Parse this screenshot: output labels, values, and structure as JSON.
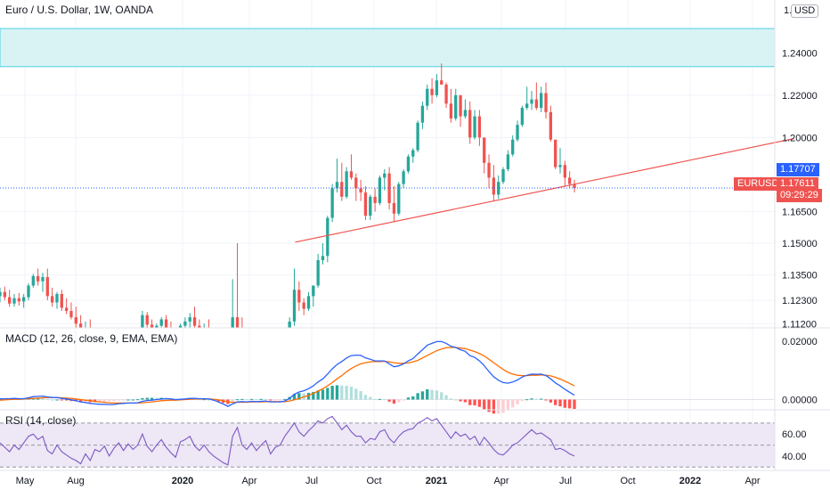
{
  "header": {
    "title": "Euro / U.S. Dollar, 1W, OANDA",
    "currency": "USD",
    "partial_top_tick": "1."
  },
  "macd_label": "MACD (12, 26, close, 9, EMA, EMA)",
  "rsi_label": "RSI (14, close)",
  "price_tags": {
    "symbol": "EURUSD",
    "last_price": "1.17611",
    "countdown": "09:29:29",
    "line_price": "1.17707",
    "symbol_color": "#ef5350",
    "line_color": "#2962ff"
  },
  "colors": {
    "up": "#26a69a",
    "down": "#ef5350",
    "trendline": "#ef5350",
    "zone_fill": "#d9f3f5",
    "zone_border": "#4dd0e1",
    "macd_line": "#2962ff",
    "signal_line": "#ff6d00",
    "rsi_line": "#7e57c2",
    "rsi_band": "#ede7f6"
  },
  "chart_data": [
    {
      "type": "candlestick",
      "title": "Euro / U.S. Dollar, 1W, OANDA",
      "x_ticks": [
        "May",
        "Aug",
        "2020",
        "Apr",
        "Jul",
        "Oct",
        "2021",
        "Apr",
        "Jul",
        "Oct",
        "2022",
        "Apr"
      ],
      "y_ticks": [
        "1.24000",
        "1.22000",
        "1.20000",
        "1.16500",
        "1.15000",
        "1.13500",
        "1.12300",
        "1.11200"
      ],
      "ylim": [
        1.11,
        1.265
      ],
      "resistance_zone": [
        1.2335,
        1.2515
      ],
      "trendline": [
        {
          "x": "2020-06-01",
          "y": 1.1505
        },
        {
          "x": "2022-06-01",
          "y": 1.1995
        }
      ],
      "candles_ohlc": [
        [
          1.125,
          1.129,
          1.122,
          1.127
        ],
        [
          1.127,
          1.1295,
          1.123,
          1.1245
        ],
        [
          1.1245,
          1.128,
          1.12,
          1.1215
        ],
        [
          1.1215,
          1.126,
          1.12,
          1.124
        ],
        [
          1.124,
          1.1265,
          1.1205,
          1.1225
        ],
        [
          1.1225,
          1.126,
          1.1195,
          1.1245
        ],
        [
          1.1245,
          1.131,
          1.123,
          1.13
        ],
        [
          1.13,
          1.1355,
          1.129,
          1.1345
        ],
        [
          1.1345,
          1.138,
          1.13,
          1.132
        ],
        [
          1.132,
          1.136,
          1.127,
          1.134
        ],
        [
          1.134,
          1.138,
          1.123,
          1.125
        ],
        [
          1.125,
          1.129,
          1.12,
          1.122
        ],
        [
          1.122,
          1.127,
          1.119,
          1.126
        ],
        [
          1.126,
          1.128,
          1.118,
          1.1195
        ],
        [
          1.1195,
          1.124,
          1.1165,
          1.118
        ],
        [
          1.118,
          1.122,
          1.114,
          1.115
        ],
        [
          1.115,
          1.12,
          1.11,
          1.112
        ],
        [
          1.112,
          1.116,
          1.106,
          1.108
        ],
        [
          1.108,
          1.113,
          1.103,
          1.11
        ],
        [
          1.11,
          1.114,
          1.1,
          1.102
        ],
        [
          1.102,
          1.108,
          1.095,
          1.105
        ],
        [
          1.105,
          1.109,
          1.101,
          1.103
        ],
        [
          1.103,
          1.108,
          1.098,
          1.106
        ],
        [
          1.106,
          1.11,
          1.099,
          1.1
        ],
        [
          1.1,
          1.106,
          1.093,
          1.104
        ],
        [
          1.104,
          1.11,
          1.101,
          1.108
        ],
        [
          1.108,
          1.11,
          1.1,
          1.102
        ],
        [
          1.102,
          1.107,
          1.099,
          1.105
        ],
        [
          1.105,
          1.109,
          1.1,
          1.102
        ],
        [
          1.102,
          1.106,
          1.099,
          1.104
        ],
        [
          1.104,
          1.118,
          1.103,
          1.116
        ],
        [
          1.116,
          1.1175,
          1.11,
          1.1115
        ],
        [
          1.1115,
          1.114,
          1.106,
          1.108
        ],
        [
          1.108,
          1.112,
          1.104,
          1.111
        ],
        [
          1.111,
          1.115,
          1.11,
          1.114
        ],
        [
          1.114,
          1.116,
          1.109,
          1.11
        ],
        [
          1.11,
          1.113,
          1.104,
          1.106
        ],
        [
          1.106,
          1.109,
          1.102,
          1.103
        ],
        [
          1.103,
          1.112,
          1.102,
          1.111
        ],
        [
          1.111,
          1.115,
          1.108,
          1.113
        ],
        [
          1.113,
          1.117,
          1.11,
          1.115
        ],
        [
          1.115,
          1.12,
          1.109,
          1.111
        ],
        [
          1.111,
          1.114,
          1.106,
          1.108
        ],
        [
          1.108,
          1.112,
          1.105,
          1.11
        ],
        [
          1.11,
          1.114,
          1.104,
          1.106
        ],
        [
          1.106,
          1.109,
          1.098,
          1.1
        ],
        [
          1.1,
          1.105,
          1.09,
          1.095
        ],
        [
          1.095,
          1.098,
          1.085,
          1.088
        ],
        [
          1.088,
          1.09,
          1.078,
          1.08
        ],
        [
          1.08,
          1.133,
          1.078,
          1.115
        ],
        [
          1.115,
          1.15,
          1.11,
          1.105
        ],
        [
          1.105,
          1.115,
          1.07,
          1.095
        ],
        [
          1.095,
          1.1,
          1.085,
          1.088
        ],
        [
          1.088,
          1.099,
          1.084,
          1.095
        ],
        [
          1.095,
          1.099,
          1.086,
          1.087
        ],
        [
          1.087,
          1.095,
          1.08,
          1.09
        ],
        [
          1.09,
          1.098,
          1.086,
          1.092
        ],
        [
          1.092,
          1.097,
          1.078,
          1.081
        ],
        [
          1.081,
          1.087,
          1.078,
          1.085
        ],
        [
          1.085,
          1.09,
          1.076,
          1.087
        ],
        [
          1.087,
          1.098,
          1.085,
          1.096
        ],
        [
          1.096,
          1.115,
          1.095,
          1.113
        ],
        [
          1.113,
          1.138,
          1.111,
          1.128
        ],
        [
          1.128,
          1.132,
          1.118,
          1.122
        ],
        [
          1.122,
          1.124,
          1.116,
          1.119
        ],
        [
          1.119,
          1.127,
          1.118,
          1.125
        ],
        [
          1.125,
          1.13,
          1.12,
          1.13
        ],
        [
          1.13,
          1.145,
          1.129,
          1.142
        ],
        [
          1.142,
          1.15,
          1.14,
          1.144
        ],
        [
          1.144,
          1.163,
          1.141,
          1.162
        ],
        [
          1.162,
          1.178,
          1.16,
          1.176
        ],
        [
          1.176,
          1.19,
          1.174,
          1.179
        ],
        [
          1.179,
          1.188,
          1.17,
          1.172
        ],
        [
          1.172,
          1.186,
          1.171,
          1.184
        ],
        [
          1.184,
          1.192,
          1.18,
          1.181
        ],
        [
          1.181,
          1.183,
          1.17,
          1.176
        ],
        [
          1.176,
          1.18,
          1.17,
          1.174
        ],
        [
          1.174,
          1.177,
          1.161,
          1.163
        ],
        [
          1.163,
          1.173,
          1.161,
          1.172
        ],
        [
          1.172,
          1.176,
          1.165,
          1.169
        ],
        [
          1.169,
          1.182,
          1.168,
          1.181
        ],
        [
          1.181,
          1.185,
          1.175,
          1.183
        ],
        [
          1.183,
          1.186,
          1.166,
          1.169
        ],
        [
          1.169,
          1.177,
          1.16,
          1.164
        ],
        [
          1.164,
          1.179,
          1.163,
          1.178
        ],
        [
          1.178,
          1.185,
          1.176,
          1.184
        ],
        [
          1.184,
          1.192,
          1.183,
          1.191
        ],
        [
          1.191,
          1.195,
          1.188,
          1.194
        ],
        [
          1.194,
          1.208,
          1.193,
          1.207
        ],
        [
          1.207,
          1.217,
          1.204,
          1.215
        ],
        [
          1.215,
          1.225,
          1.213,
          1.223
        ],
        [
          1.223,
          1.228,
          1.216,
          1.22
        ],
        [
          1.22,
          1.23,
          1.219,
          1.227
        ],
        [
          1.227,
          1.235,
          1.225,
          1.225
        ],
        [
          1.225,
          1.226,
          1.214,
          1.216
        ],
        [
          1.216,
          1.223,
          1.207,
          1.209
        ],
        [
          1.209,
          1.223,
          1.208,
          1.22
        ],
        [
          1.22,
          1.22,
          1.205,
          1.21
        ],
        [
          1.21,
          1.218,
          1.209,
          1.213
        ],
        [
          1.213,
          1.217,
          1.197,
          1.2
        ],
        [
          1.2,
          1.213,
          1.199,
          1.21
        ],
        [
          1.21,
          1.213,
          1.196,
          1.2
        ],
        [
          1.2,
          1.199,
          1.183,
          1.188
        ],
        [
          1.188,
          1.192,
          1.176,
          1.181
        ],
        [
          1.181,
          1.187,
          1.17,
          1.173
        ],
        [
          1.173,
          1.182,
          1.171,
          1.179
        ],
        [
          1.179,
          1.186,
          1.178,
          1.185
        ],
        [
          1.185,
          1.194,
          1.184,
          1.192
        ],
        [
          1.192,
          1.201,
          1.191,
          1.199
        ],
        [
          1.199,
          1.208,
          1.198,
          1.206
        ],
        [
          1.206,
          1.215,
          1.205,
          1.214
        ],
        [
          1.214,
          1.224,
          1.213,
          1.216
        ],
        [
          1.216,
          1.222,
          1.213,
          1.218
        ],
        [
          1.218,
          1.226,
          1.213,
          1.214
        ],
        [
          1.214,
          1.224,
          1.212,
          1.221
        ],
        [
          1.221,
          1.226,
          1.209,
          1.212
        ],
        [
          1.212,
          1.215,
          1.198,
          1.199
        ],
        [
          1.199,
          1.198,
          1.185,
          1.186
        ],
        [
          1.186,
          1.195,
          1.183,
          1.187
        ],
        [
          1.187,
          1.189,
          1.177,
          1.181
        ],
        [
          1.181,
          1.184,
          1.176,
          1.178
        ],
        [
          1.178,
          1.18,
          1.174,
          1.1761
        ]
      ]
    },
    {
      "type": "line",
      "title": "MACD (12, 26, close, 9, EMA, EMA)",
      "y_ticks": [
        "0.02000",
        "0.00000"
      ],
      "ylim": [
        -0.0035,
        0.0245
      ],
      "series": [
        {
          "name": "MACD",
          "values": [
            0.0002,
            0.0003,
            0.0003,
            0.0004,
            0.0003,
            0.0003,
            0.0006,
            0.001,
            0.0011,
            0.0012,
            0.0009,
            0.0007,
            0.0007,
            0.0004,
            0.0002,
            -0.0001,
            -0.0004,
            -0.0008,
            -0.001,
            -0.0013,
            -0.0015,
            -0.0016,
            -0.0016,
            -0.0017,
            -0.0017,
            -0.0014,
            -0.0013,
            -0.0012,
            -0.0012,
            -0.0011,
            -0.0006,
            -0.0003,
            -0.0002,
            0.0,
            0.0002,
            0.0003,
            0.0002,
            0.0,
            0.0001,
            0.0002,
            0.0004,
            0.0004,
            0.0003,
            0.0003,
            0.0002,
            -0.0002,
            -0.0008,
            -0.0015,
            -0.0023,
            -0.0015,
            -0.0008,
            -0.0007,
            -0.0008,
            -0.0006,
            -0.0007,
            -0.0006,
            -0.0005,
            -0.0008,
            -0.0008,
            -0.0008,
            -0.0005,
            0.0004,
            0.0018,
            0.0026,
            0.003,
            0.0037,
            0.0047,
            0.006,
            0.0071,
            0.0087,
            0.0105,
            0.012,
            0.013,
            0.0142,
            0.015,
            0.0152,
            0.0151,
            0.0142,
            0.0138,
            0.0132,
            0.0132,
            0.0132,
            0.0122,
            0.0112,
            0.0115,
            0.0122,
            0.0132,
            0.014,
            0.0156,
            0.017,
            0.0186,
            0.0192,
            0.0198,
            0.0198,
            0.0192,
            0.0182,
            0.0178,
            0.017,
            0.0165,
            0.015,
            0.0144,
            0.0132,
            0.0116,
            0.0096,
            0.0078,
            0.0066,
            0.0058,
            0.0056,
            0.006,
            0.0067,
            0.0077,
            0.0083,
            0.0087,
            0.0086,
            0.0087,
            0.0082,
            0.0071,
            0.0057,
            0.0047,
            0.0035,
            0.0025,
            0.0015
          ]
        },
        {
          "name": "Signal",
          "values": [
            -0.0002,
            -0.0001,
            0.0,
            0.0001,
            0.0001,
            0.0002,
            0.0003,
            0.0004,
            0.0005,
            0.0006,
            0.0007,
            0.0007,
            0.0007,
            0.0006,
            0.0005,
            0.0004,
            0.0002,
            0.0,
            -0.0002,
            -0.0004,
            -0.0006,
            -0.0008,
            -0.0009,
            -0.0011,
            -0.0012,
            -0.0012,
            -0.0012,
            -0.0012,
            -0.0012,
            -0.0012,
            -0.0011,
            -0.0009,
            -0.0008,
            -0.0006,
            -0.0004,
            -0.0003,
            -0.0002,
            -0.0002,
            -0.0001,
            0.0,
            0.0001,
            0.0002,
            0.0002,
            0.0002,
            0.0002,
            0.0001,
            -0.0001,
            -0.0004,
            -0.0008,
            -0.0009,
            -0.0009,
            -0.0009,
            -0.0009,
            -0.0008,
            -0.0008,
            -0.0008,
            -0.0007,
            -0.0007,
            -0.0007,
            -0.0007,
            -0.0007,
            -0.0005,
            -0.0001,
            0.0004,
            0.0009,
            0.0014,
            0.0021,
            0.0029,
            0.0037,
            0.0047,
            0.0058,
            0.0071,
            0.0082,
            0.0095,
            0.0106,
            0.0115,
            0.0122,
            0.0126,
            0.0129,
            0.013,
            0.013,
            0.0131,
            0.0129,
            0.0126,
            0.0124,
            0.0124,
            0.0125,
            0.0129,
            0.0134,
            0.0142,
            0.0151,
            0.0159,
            0.0167,
            0.0173,
            0.0177,
            0.0178,
            0.0178,
            0.0176,
            0.0174,
            0.0169,
            0.0164,
            0.0157,
            0.0149,
            0.0138,
            0.0126,
            0.0114,
            0.0103,
            0.0093,
            0.0087,
            0.0083,
            0.0082,
            0.0082,
            0.0083,
            0.0083,
            0.0084,
            0.0083,
            0.0081,
            0.0076,
            0.007,
            0.0063,
            0.0055,
            0.0047
          ]
        }
      ]
    },
    {
      "type": "line",
      "title": "RSI (14, close)",
      "y_ticks": [
        "60.00",
        "40.00"
      ],
      "ylim": [
        27,
        82
      ],
      "band": [
        30,
        70
      ],
      "series": [
        {
          "name": "RSI",
          "values": [
            52,
            48,
            44,
            50,
            46,
            52,
            58,
            60,
            55,
            58,
            45,
            42,
            50,
            44,
            41,
            38,
            36,
            33,
            42,
            36,
            46,
            44,
            49,
            40,
            47,
            52,
            45,
            51,
            46,
            50,
            60,
            49,
            44,
            50,
            55,
            48,
            43,
            39,
            53,
            55,
            58,
            49,
            45,
            50,
            44,
            40,
            37,
            34,
            32,
            58,
            66,
            50,
            46,
            52,
            45,
            50,
            54,
            42,
            48,
            50,
            58,
            64,
            70,
            62,
            58,
            63,
            67,
            72,
            70,
            74,
            76,
            70,
            64,
            68,
            62,
            58,
            58,
            52,
            56,
            55,
            62,
            64,
            56,
            52,
            58,
            62,
            64,
            65,
            70,
            72,
            75,
            72,
            74,
            68,
            62,
            56,
            62,
            58,
            60,
            55,
            58,
            50,
            57,
            52,
            46,
            42,
            41,
            45,
            50,
            52,
            56,
            60,
            64,
            60,
            61,
            58,
            55,
            46,
            47,
            45,
            42,
            40
          ]
        }
      ]
    }
  ]
}
